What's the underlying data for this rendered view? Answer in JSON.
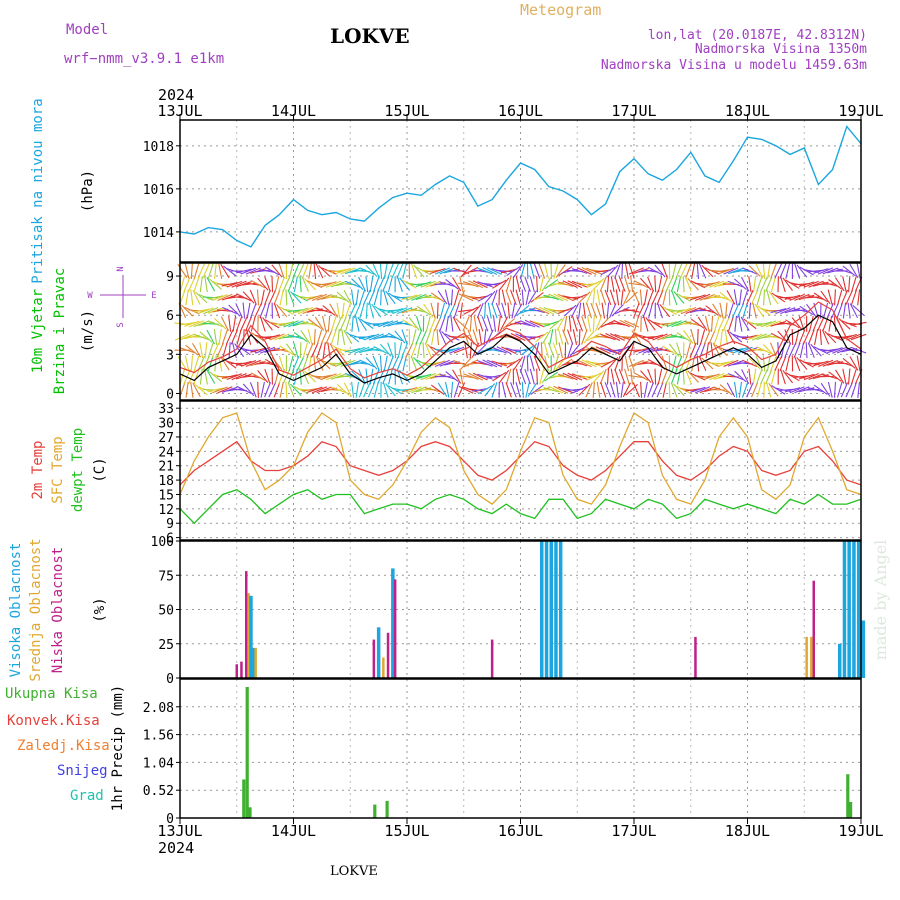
{
  "header": {
    "model_label": "Model",
    "model_name": "wrf−nmm_v3.9.1  e1km",
    "title": "LOKVE",
    "meteogram": "Meteogram",
    "lonlat": "lon,lat (20.0187E, 42.8312N)",
    "altitude": "Nadmorska Visina 1350m",
    "model_altitude": "Nadmorska Visina u modelu 1459.63m",
    "year_top": "2024",
    "year_bottom": "2024",
    "footer_title": "LOKVE",
    "watermark": "made by Angel"
  },
  "colors": {
    "pressure": "#1ca6e0",
    "wind_label": "#00c000",
    "temp2m": "#e8403a",
    "sfc_temp": "#e0a830",
    "dewpt": "#20c020",
    "high_cloud": "#1ca6e0",
    "mid_cloud": "#e0a830",
    "low_cloud": "#c0208a",
    "total_precip": "#40b030",
    "conv_precip": "#e8403a",
    "frz_precip": "#f08030",
    "snow": "#4040e0",
    "graupel": "#20c0b0",
    "header_purple": "#a040c0",
    "header_gold": "#e0b060"
  },
  "chart_data": [
    {
      "type": "line",
      "panel": "pressure",
      "ylabel": [
        "Pritisak na nivou mora",
        "(hPa)"
      ],
      "ylim": [
        1012.6,
        1019.2
      ],
      "yticks": [
        1014,
        1016,
        1018
      ],
      "x_dates": [
        "13JUL",
        "14JUL",
        "15JUL",
        "16JUL",
        "17JUL",
        "18JUL",
        "19JUL"
      ],
      "x_hours": [
        0,
        3,
        6,
        9,
        12,
        15,
        18,
        21,
        24,
        27,
        30,
        33,
        36,
        39,
        42,
        45,
        48,
        51,
        54,
        57,
        60,
        63,
        66,
        69,
        72,
        75,
        78,
        81,
        84,
        87,
        90,
        93,
        96,
        99,
        102,
        105,
        108,
        111,
        114,
        117,
        120,
        123,
        126,
        129,
        132,
        135,
        138,
        141,
        144
      ],
      "values": [
        1014.0,
        1013.9,
        1014.2,
        1014.1,
        1013.6,
        1013.3,
        1014.3,
        1014.8,
        1015.5,
        1015.0,
        1014.8,
        1014.9,
        1014.6,
        1014.5,
        1015.1,
        1015.6,
        1015.8,
        1015.7,
        1016.2,
        1016.6,
        1016.3,
        1015.2,
        1015.5,
        1016.4,
        1017.2,
        1016.9,
        1016.1,
        1015.9,
        1015.5,
        1014.8,
        1015.3,
        1016.8,
        1017.4,
        1016.7,
        1016.4,
        1016.9,
        1017.7,
        1016.6,
        1016.3,
        1017.3,
        1018.4,
        1018.3,
        1018.0,
        1017.6,
        1017.9,
        1016.2,
        1016.9,
        1018.9,
        1018.1
      ],
      "grid": true
    },
    {
      "type": "line",
      "panel": "wind",
      "ylabel": [
        "10m Vjetar",
        "Brzina i Pravac",
        "(m/s)"
      ],
      "direction_legend": [
        "N",
        "W",
        "E",
        "S"
      ],
      "ylim": [
        -0.5,
        10
      ],
      "yticks": [
        0,
        3,
        6,
        9
      ],
      "x_hours": [
        0,
        3,
        6,
        9,
        12,
        15,
        18,
        21,
        24,
        27,
        30,
        33,
        36,
        39,
        42,
        45,
        48,
        51,
        54,
        57,
        60,
        63,
        66,
        69,
        72,
        75,
        78,
        81,
        84,
        87,
        90,
        93,
        96,
        99,
        102,
        105,
        108,
        111,
        114,
        117,
        120,
        123,
        126,
        129,
        132,
        135,
        138,
        141,
        144
      ],
      "series": [
        {
          "label": "speed_min",
          "values": [
            1.5,
            1.0,
            2.0,
            2.5,
            3.0,
            4.5,
            3.5,
            1.5,
            1.0,
            1.5,
            2.0,
            3.0,
            1.5,
            0.8,
            1.2,
            1.5,
            1.0,
            1.5,
            2.5,
            3.5,
            4.0,
            3.0,
            3.5,
            4.5,
            4.0,
            3.0,
            1.5,
            2.0,
            2.5,
            3.5,
            3.0,
            2.5,
            4.0,
            3.5,
            2.0,
            1.5,
            2.0,
            2.5,
            3.0,
            3.5,
            3.0,
            2.0,
            2.5,
            4.5,
            5.0,
            6.0,
            5.5,
            3.5,
            3.0
          ]
        },
        {
          "label": "speed_mean",
          "values": [
            2.0,
            1.6,
            2.4,
            2.8,
            3.4,
            5.2,
            4.0,
            1.8,
            1.4,
            2.0,
            2.6,
            3.4,
            1.9,
            1.2,
            1.6,
            1.9,
            1.4,
            2.0,
            3.0,
            4.0,
            4.6,
            3.6,
            4.2,
            5.0,
            4.6,
            3.6,
            2.0,
            2.6,
            3.0,
            4.0,
            3.6,
            3.0,
            4.6,
            4.0,
            2.6,
            2.0,
            2.6,
            3.0,
            3.6,
            4.0,
            3.6,
            2.6,
            3.0,
            5.2,
            6.0,
            7.0,
            6.4,
            4.2,
            3.4
          ]
        }
      ],
      "grid": true
    },
    {
      "type": "line",
      "panel": "temperature",
      "ylabel": [
        "2m Temp",
        "SFC Temp",
        "dewpt Temp",
        "(C)"
      ],
      "ylim": [
        5.5,
        34.5
      ],
      "yticks": [
        6,
        9,
        12,
        15,
        18,
        21,
        24,
        27,
        30,
        33
      ],
      "x_hours": [
        0,
        3,
        6,
        9,
        12,
        15,
        18,
        21,
        24,
        27,
        30,
        33,
        36,
        39,
        42,
        45,
        48,
        51,
        54,
        57,
        60,
        63,
        66,
        69,
        72,
        75,
        78,
        81,
        84,
        87,
        90,
        93,
        96,
        99,
        102,
        105,
        108,
        111,
        114,
        117,
        120,
        123,
        126,
        129,
        132,
        135,
        138,
        141,
        144
      ],
      "series": [
        {
          "name": "2m Temp",
          "values": [
            17,
            20,
            22,
            24,
            26,
            22,
            20,
            20,
            21,
            23,
            26,
            25,
            21,
            20,
            19,
            20,
            22,
            25,
            26,
            25,
            22,
            19,
            18,
            20,
            23,
            26,
            25,
            21,
            19,
            18,
            20,
            23,
            26,
            26,
            22,
            19,
            18,
            20,
            23,
            25,
            24,
            20,
            19,
            20,
            24,
            25,
            22,
            18,
            17
          ]
        },
        {
          "name": "SFC Temp",
          "values": [
            15,
            22,
            27,
            31,
            32,
            22,
            16,
            18,
            21,
            28,
            32,
            30,
            18,
            15,
            14,
            17,
            22,
            28,
            31,
            29,
            20,
            15,
            13,
            16,
            24,
            31,
            30,
            19,
            14,
            13,
            17,
            25,
            32,
            30,
            19,
            14,
            13,
            18,
            27,
            31,
            27,
            16,
            14,
            17,
            27,
            31,
            24,
            16,
            15
          ]
        },
        {
          "name": "dewpt Temp",
          "values": [
            12,
            9,
            12,
            15,
            16,
            14,
            11,
            13,
            15,
            16,
            14,
            15,
            15,
            11,
            12,
            13,
            13,
            12,
            14,
            15,
            14,
            12,
            11,
            13,
            11,
            10,
            14,
            14,
            10,
            11,
            14,
            13,
            12,
            14,
            13,
            10,
            11,
            14,
            13,
            12,
            13,
            12,
            11,
            14,
            13,
            15,
            13,
            13,
            14
          ]
        }
      ],
      "grid": true
    },
    {
      "type": "bar",
      "panel": "cloud",
      "ylabel": [
        "Visoka Oblacnost",
        "Srednja Oblacnost",
        "Niska Oblacnost",
        "(%)"
      ],
      "ylim": [
        0,
        100
      ],
      "yticks": [
        0,
        25,
        50,
        75,
        100
      ],
      "bars": [
        {
          "series": "low",
          "x_hour": 12.0,
          "value": 10
        },
        {
          "series": "low",
          "x_hour": 14.0,
          "value": 78
        },
        {
          "series": "mid",
          "x_hour": 14.5,
          "value": 62
        },
        {
          "series": "high",
          "x_hour": 15.0,
          "value": 60
        },
        {
          "series": "high",
          "x_hour": 15.5,
          "value": 22
        },
        {
          "series": "mid",
          "x_hour": 16.0,
          "value": 22
        },
        {
          "series": "low",
          "x_hour": 13.0,
          "value": 12
        },
        {
          "series": "low",
          "x_hour": 41.0,
          "value": 28
        },
        {
          "series": "high",
          "x_hour": 42.0,
          "value": 37
        },
        {
          "series": "mid",
          "x_hour": 43.0,
          "value": 15
        },
        {
          "series": "low",
          "x_hour": 44.0,
          "value": 33
        },
        {
          "series": "high",
          "x_hour": 45.0,
          "value": 80
        },
        {
          "series": "low",
          "x_hour": 45.5,
          "value": 72
        },
        {
          "series": "low",
          "x_hour": 66.0,
          "value": 28
        },
        {
          "series": "high",
          "x_hour": 76.5,
          "value": 100
        },
        {
          "series": "high",
          "x_hour": 77.5,
          "value": 100
        },
        {
          "series": "high",
          "x_hour": 78.5,
          "value": 100
        },
        {
          "series": "high",
          "x_hour": 79.5,
          "value": 100
        },
        {
          "series": "high",
          "x_hour": 80.5,
          "value": 100
        },
        {
          "series": "low",
          "x_hour": 109.0,
          "value": 30
        },
        {
          "series": "low",
          "x_hour": 134.0,
          "value": 71
        },
        {
          "series": "high",
          "x_hour": 139.5,
          "value": 25
        },
        {
          "series": "mid",
          "x_hour": 132.5,
          "value": 30
        },
        {
          "series": "mid",
          "x_hour": 133.5,
          "value": 30
        },
        {
          "series": "high",
          "x_hour": 140.5,
          "value": 100
        },
        {
          "series": "high",
          "x_hour": 141.5,
          "value": 100
        },
        {
          "series": "high",
          "x_hour": 142.5,
          "value": 100
        },
        {
          "series": "high",
          "x_hour": 143.5,
          "value": 100
        },
        {
          "series": "high",
          "x_hour": 144.5,
          "value": 42
        }
      ],
      "grid": true
    },
    {
      "type": "bar",
      "panel": "precip",
      "legend": [
        "Ukupna Kisa",
        "Konvek.Kisa",
        "Zaledj.Kisa",
        "Snijeg",
        "Grad"
      ],
      "ylabel": "1hr Precip (mm)",
      "ylim": [
        0,
        2.6
      ],
      "yticks": [
        0,
        0.52,
        1.04,
        1.56,
        2.08
      ],
      "ytick_labels": [
        "0",
        "0.52",
        "1.04",
        "1.56",
        "2.08"
      ],
      "x_dates": [
        "13JUL",
        "14JUL",
        "15JUL",
        "16JUL",
        "17JUL",
        "18JUL",
        "19JUL"
      ],
      "bars": [
        {
          "x_hour": 13.5,
          "value": 0.72
        },
        {
          "x_hour": 14.2,
          "value": 2.45
        },
        {
          "x_hour": 14.8,
          "value": 0.2
        },
        {
          "x_hour": 41.2,
          "value": 0.25
        },
        {
          "x_hour": 43.8,
          "value": 0.32
        },
        {
          "x_hour": 141.2,
          "value": 0.82
        },
        {
          "x_hour": 141.8,
          "value": 0.3
        }
      ],
      "grid": true
    }
  ]
}
